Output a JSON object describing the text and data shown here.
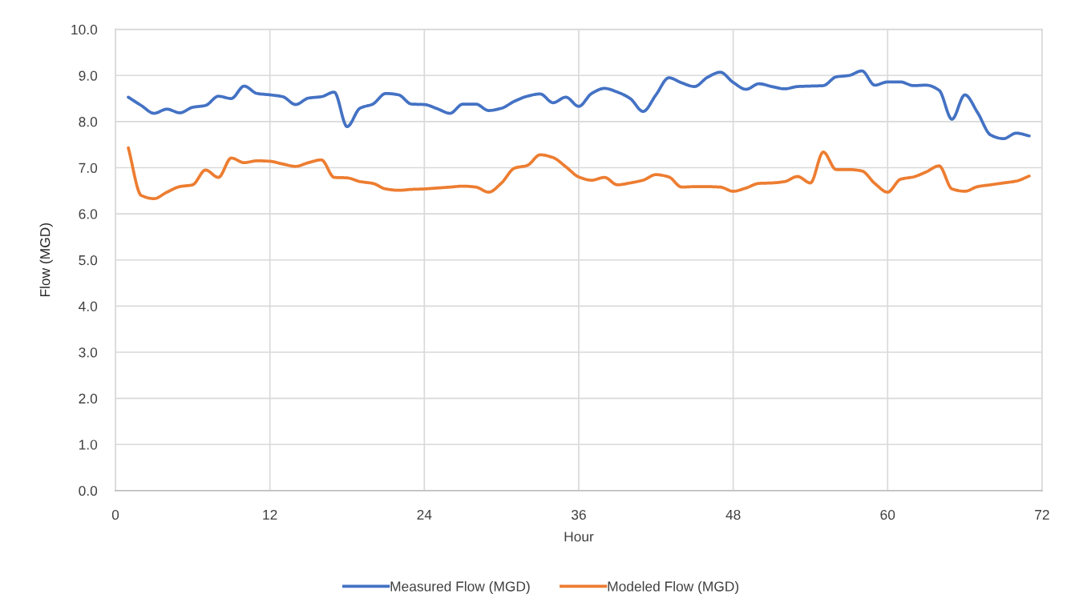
{
  "chart_data": {
    "type": "line",
    "xlabel": "Hour",
    "ylabel": "Flow (MGD)",
    "x": [
      1,
      2,
      3,
      4,
      5,
      6,
      7,
      8,
      9,
      10,
      11,
      12,
      13,
      14,
      15,
      16,
      17,
      18,
      19,
      20,
      21,
      22,
      23,
      24,
      25,
      26,
      27,
      28,
      29,
      30,
      31,
      32,
      33,
      34,
      35,
      36,
      37,
      38,
      39,
      40,
      41,
      42,
      43,
      44,
      45,
      46,
      47,
      48,
      49,
      50,
      51,
      52,
      53,
      54,
      55,
      56,
      57,
      58,
      59,
      60,
      61,
      62,
      63,
      64,
      65,
      66,
      67,
      68,
      69,
      70,
      71
    ],
    "series": [
      {
        "name": "Measured Flow (MGD)",
        "color": "#4472c4",
        "values": [
          8.53,
          8.35,
          8.18,
          8.27,
          8.19,
          8.31,
          8.35,
          8.55,
          8.5,
          8.77,
          8.61,
          8.58,
          8.54,
          8.37,
          8.51,
          8.54,
          8.64,
          7.89,
          8.29,
          8.38,
          8.61,
          8.58,
          8.38,
          8.37,
          8.28,
          8.18,
          8.38,
          8.38,
          8.24,
          8.29,
          8.44,
          8.55,
          8.6,
          8.41,
          8.53,
          8.33,
          8.61,
          8.72,
          8.64,
          8.5,
          8.22,
          8.58,
          8.95,
          8.84,
          8.76,
          8.96,
          9.07,
          8.85,
          8.7,
          8.82,
          8.76,
          8.71,
          8.76,
          8.77,
          8.78,
          8.97,
          9.0,
          9.1,
          8.79,
          8.86,
          8.86,
          8.78,
          8.79,
          8.68,
          8.05,
          8.58,
          8.19,
          7.71,
          7.63,
          7.75,
          7.69
        ]
      },
      {
        "name": "Modeled Flow (MGD)",
        "color": "#ed7d31",
        "values": [
          7.43,
          6.4,
          6.33,
          6.47,
          6.59,
          6.63,
          6.95,
          6.79,
          7.21,
          7.11,
          7.15,
          7.14,
          7.08,
          7.03,
          7.11,
          7.17,
          6.79,
          6.78,
          6.7,
          6.66,
          6.54,
          6.51,
          6.53,
          6.54,
          6.56,
          6.58,
          6.6,
          6.58,
          6.47,
          6.67,
          6.99,
          7.05,
          7.28,
          7.22,
          7.02,
          6.8,
          6.73,
          6.79,
          6.63,
          6.67,
          6.73,
          6.85,
          6.8,
          6.58,
          6.59,
          6.59,
          6.58,
          6.49,
          6.56,
          6.66,
          6.67,
          6.7,
          6.81,
          6.67,
          7.34,
          6.96,
          6.96,
          6.93,
          6.66,
          6.47,
          6.75,
          6.8,
          6.91,
          7.04,
          6.54,
          6.49,
          6.59,
          6.63,
          6.67,
          6.71,
          6.82
        ]
      }
    ],
    "xlim": [
      0,
      72
    ],
    "xticks": [
      0,
      12,
      24,
      36,
      48,
      60,
      72
    ],
    "ylim": [
      0,
      10
    ],
    "yticks": [
      {
        "value": 0,
        "label": "0.0"
      },
      {
        "value": 1,
        "label": "1.0"
      },
      {
        "value": 2,
        "label": "2.0"
      },
      {
        "value": 3,
        "label": "3.0"
      },
      {
        "value": 4,
        "label": "4.0"
      },
      {
        "value": 5,
        "label": "5.0"
      },
      {
        "value": 6,
        "label": "6.0"
      },
      {
        "value": 7,
        "label": "7.0"
      },
      {
        "value": 8,
        "label": "8.0"
      },
      {
        "value": 9,
        "label": "9.0"
      },
      {
        "value": 10,
        "label": "10.0"
      }
    ],
    "grid": true,
    "legend": "bottom",
    "line_style": "solid"
  }
}
